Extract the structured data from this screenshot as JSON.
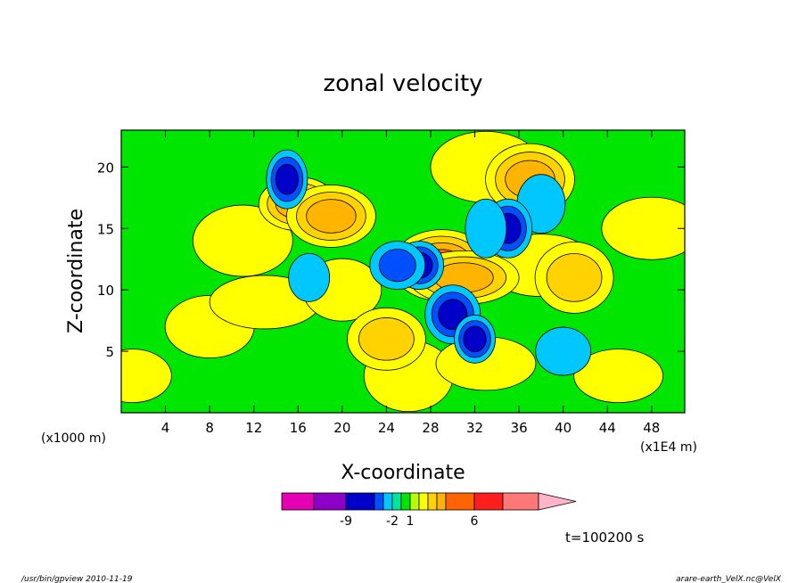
{
  "chart_data": {
    "type": "heatmap",
    "title": "zonal velocity",
    "xlabel": "X-coordinate",
    "ylabel": "Z-coordinate",
    "x_unit": "(x1E4 m)",
    "y_unit": "(x1000 m)",
    "x_ticks": [
      "4",
      "8",
      "12",
      "16",
      "20",
      "24",
      "28",
      "32",
      "36",
      "40",
      "44",
      "48"
    ],
    "y_ticks": [
      "5",
      "10",
      "15",
      "20"
    ],
    "xlim": [
      0,
      51
    ],
    "ylim": [
      0,
      23
    ],
    "colorbar": {
      "colors": [
        "#e600b4",
        "#8c00c8",
        "#0000c8",
        "#0050ff",
        "#00c8ff",
        "#00e6a0",
        "#00e600",
        "#b4ff00",
        "#ffff00",
        "#ffd200",
        "#ffb400",
        "#ff6400",
        "#ff1e1e",
        "#ff7878",
        "#ffb4c8"
      ],
      "labels": [
        "-9",
        "-2",
        "1",
        "6"
      ],
      "extend": "right"
    },
    "fields": {
      "background": "#00e600",
      "positive_blobs": [
        {
          "x": 1,
          "z": 3,
          "v": 1
        },
        {
          "x": 8,
          "z": 7,
          "v": 1
        },
        {
          "x": 11,
          "z": 14,
          "v": 1
        },
        {
          "x": 13,
          "z": 9,
          "v": 1
        },
        {
          "x": 20,
          "z": 10,
          "v": 1
        },
        {
          "x": 26,
          "z": 3,
          "v": 1
        },
        {
          "x": 33,
          "z": 4,
          "v": 1
        },
        {
          "x": 38,
          "z": 12,
          "v": 1
        },
        {
          "x": 41,
          "z": 11,
          "v": 2
        },
        {
          "x": 45,
          "z": 3,
          "v": 1
        },
        {
          "x": 48,
          "z": 15,
          "v": 1
        },
        {
          "x": 33,
          "z": 20,
          "v": 1
        },
        {
          "x": 16,
          "z": 17,
          "v": 3
        },
        {
          "x": 19,
          "z": 16,
          "v": 3
        },
        {
          "x": 29,
          "z": 12,
          "v": 4
        },
        {
          "x": 31,
          "z": 11,
          "v": 3
        },
        {
          "x": 24,
          "z": 6,
          "v": 2
        },
        {
          "x": 37,
          "z": 19,
          "v": 3
        }
      ],
      "negative_blobs": [
        {
          "x": 17,
          "z": 11,
          "v": -2
        },
        {
          "x": 38,
          "z": 17,
          "v": -2
        },
        {
          "x": 40,
          "z": 5,
          "v": -2
        },
        {
          "x": 15,
          "z": 19,
          "v": -4
        },
        {
          "x": 27,
          "z": 12,
          "v": -4
        },
        {
          "x": 30,
          "z": 8,
          "v": -4
        },
        {
          "x": 32,
          "z": 6,
          "v": -4
        },
        {
          "x": 35,
          "z": 15,
          "v": -4
        },
        {
          "x": 25,
          "z": 12,
          "v": -3
        },
        {
          "x": 33,
          "z": 15,
          "v": -2
        }
      ]
    }
  },
  "time_label": "t=100200 s",
  "footer_left": "/usr/bin/gpview  2010-11-19",
  "footer_right": "arare-earth_VelX.nc@VelX"
}
